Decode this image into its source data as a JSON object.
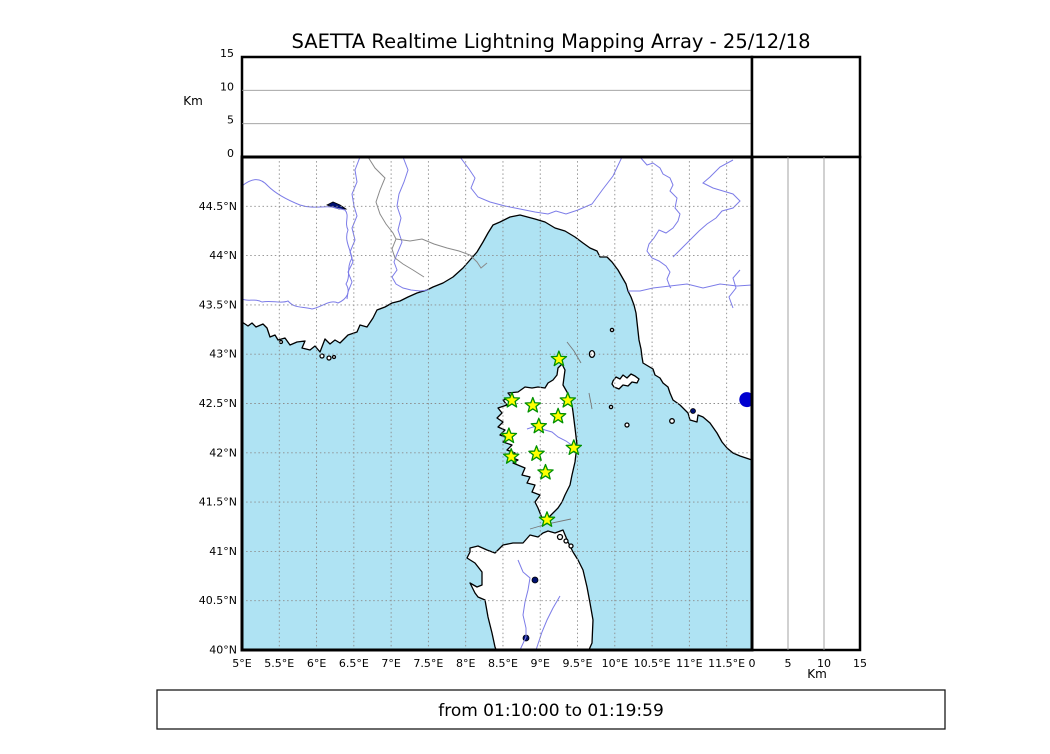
{
  "title": "SAETTA Realtime Lightning Mapping Array - 25/12/18",
  "footer": {
    "time_range": "from 01:10:00 to 01:19:59"
  },
  "axes": {
    "altitude_unit_top": "Km",
    "altitude_unit_right": "Km",
    "altitude_ticks": [
      {
        "value": 0,
        "label": "0"
      },
      {
        "value": 5,
        "label": "5"
      },
      {
        "value": 10,
        "label": "10"
      },
      {
        "value": 15,
        "label": "15"
      }
    ],
    "longitude_ticks": [
      {
        "value": 5.0,
        "label": "5°E"
      },
      {
        "value": 5.5,
        "label": "5.5°E"
      },
      {
        "value": 6.0,
        "label": "6°E"
      },
      {
        "value": 6.5,
        "label": "6.5°E"
      },
      {
        "value": 7.0,
        "label": "7°E"
      },
      {
        "value": 7.5,
        "label": "7.5°E"
      },
      {
        "value": 8.0,
        "label": "8°E"
      },
      {
        "value": 8.5,
        "label": "8.5°E"
      },
      {
        "value": 9.0,
        "label": "9°E"
      },
      {
        "value": 9.5,
        "label": "9.5°E"
      },
      {
        "value": 10.0,
        "label": "10°E"
      },
      {
        "value": 10.5,
        "label": "10.5°E"
      },
      {
        "value": 11.0,
        "label": "11°E"
      },
      {
        "value": 11.5,
        "label": "11.5°E"
      }
    ],
    "latitude_ticks": [
      {
        "value": 40.0,
        "label": "40°N"
      },
      {
        "value": 40.5,
        "label": "40.5°N"
      },
      {
        "value": 41.0,
        "label": "41°N"
      },
      {
        "value": 41.5,
        "label": "41.5°N"
      },
      {
        "value": 42.0,
        "label": "42°N"
      },
      {
        "value": 42.5,
        "label": "42.5°N"
      },
      {
        "value": 43.0,
        "label": "43°N"
      },
      {
        "value": 43.5,
        "label": "43.5°N"
      },
      {
        "value": 44.0,
        "label": "44°N"
      },
      {
        "value": 44.5,
        "label": "44.5°N"
      }
    ]
  },
  "chart_data": {
    "type": "scatter",
    "title": "SAETTA Realtime Lightning Mapping Array - 25/12/18",
    "time_window": "from 01:10:00 to 01:19:59",
    "description": "Realtime lightning mapping display: central lon/lat map with altitude cross-section panels (top: altitude vs longitude; right: altitude vs latitude). Both altitude panels are empty — no lightning sources plotted in this time window. Green stars mark the SAETTA sensor stations on Corsica; one blue filled circle marker sits at the eastern map edge.",
    "map_extent": {
      "lon_min": 5.0,
      "lon_max": 11.84,
      "lat_min": 40.0,
      "lat_max": 45.0
    },
    "altitude_axis": {
      "unit": "Km",
      "min": 0,
      "max": 15,
      "gridlines": [
        5,
        10
      ]
    },
    "grid": "dashed graticule every 0.5 degree",
    "stations": [
      {
        "lon": 9.25,
        "lat": 42.95
      },
      {
        "lon": 8.62,
        "lat": 42.53
      },
      {
        "lon": 9.37,
        "lat": 42.53
      },
      {
        "lon": 8.9,
        "lat": 42.48
      },
      {
        "lon": 9.24,
        "lat": 42.37
      },
      {
        "lon": 8.98,
        "lat": 42.27
      },
      {
        "lon": 8.58,
        "lat": 42.17
      },
      {
        "lon": 9.45,
        "lat": 42.05
      },
      {
        "lon": 8.95,
        "lat": 41.99
      },
      {
        "lon": 8.61,
        "lat": 41.96
      },
      {
        "lon": 9.07,
        "lat": 41.8
      },
      {
        "lon": 9.09,
        "lat": 41.32
      }
    ],
    "station_marker": {
      "shape": "star",
      "fill": "#ffff00",
      "stroke": "#009100"
    },
    "extra_marker": {
      "shape": "filled-circle",
      "color": "#0000d0",
      "lon": 11.77,
      "lat": 42.54
    },
    "lightning_sources": []
  },
  "colors": {
    "sea": "#afe3f3",
    "land": "#ffffff",
    "coastline": "#000000",
    "rivers": "#7c7ce8",
    "borders": "#8a8a8a",
    "grid": "#8c8c8c",
    "panel_grid": "#999999",
    "lakes": "#001070",
    "extra_marker": "#0000d0",
    "station_fill": "#ffff00",
    "station_stroke": "#009100"
  }
}
